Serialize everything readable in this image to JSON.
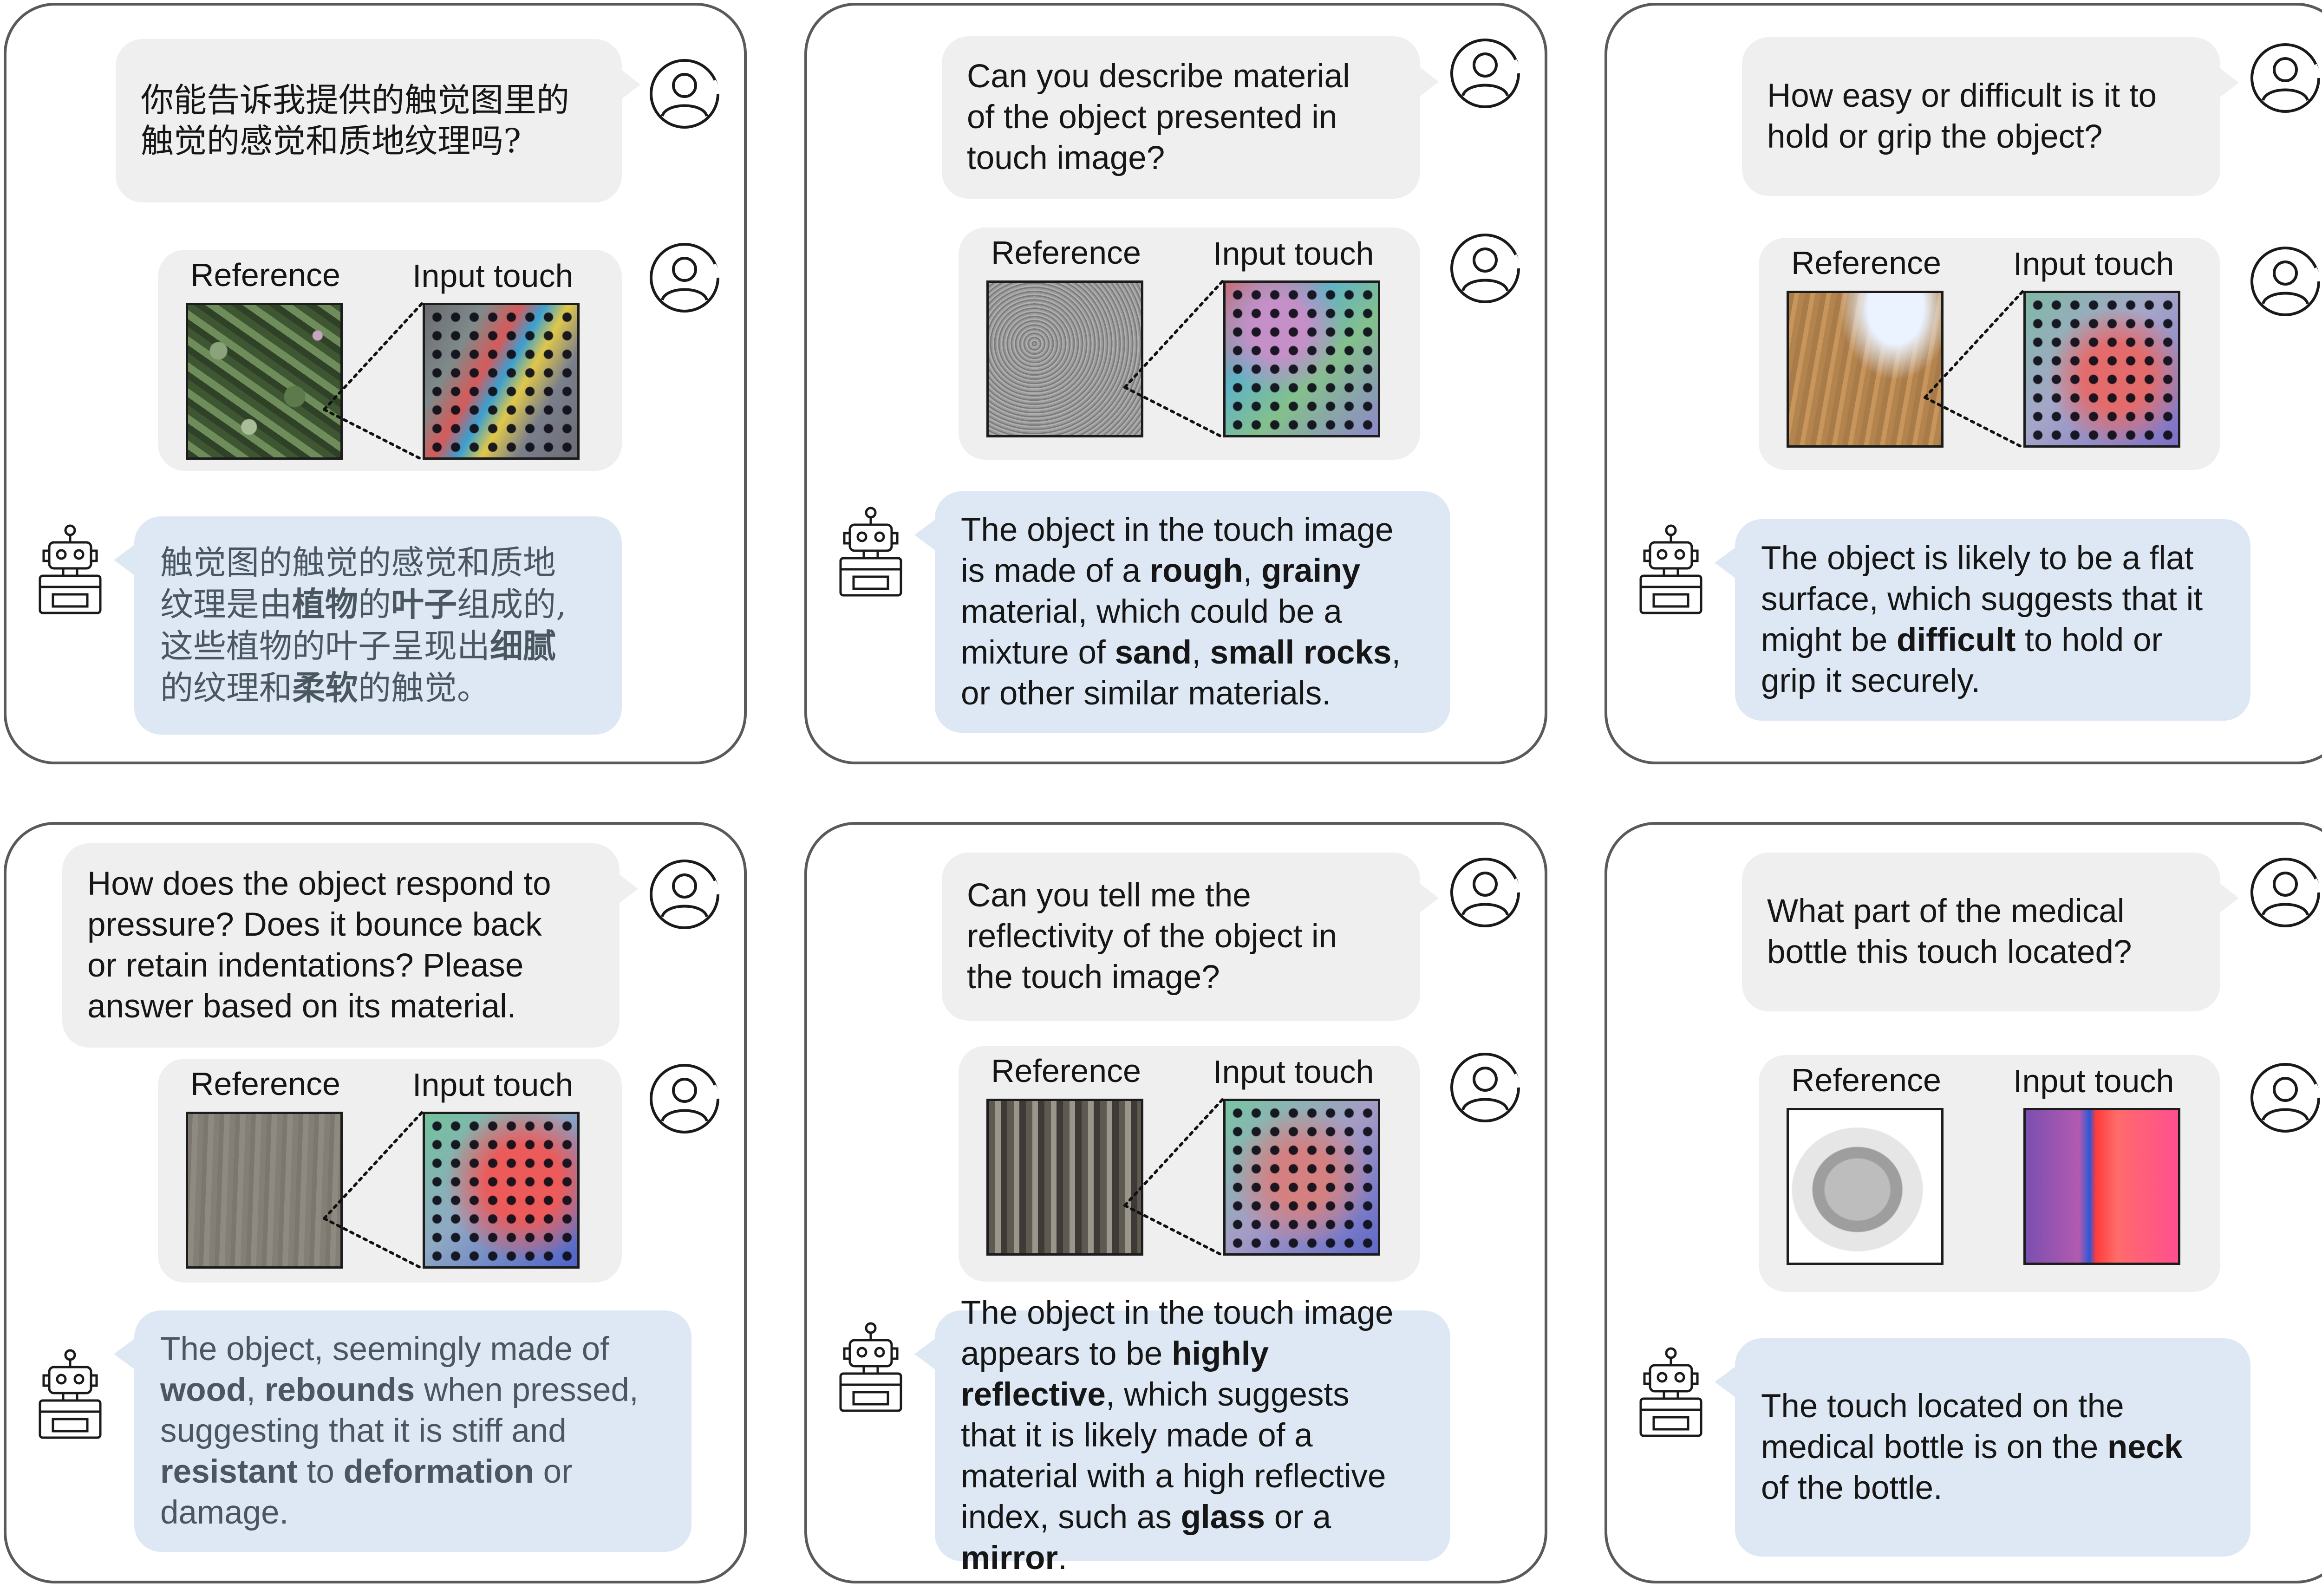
{
  "labels": {
    "reference": "Reference",
    "input_touch": "Input touch"
  },
  "icons": {
    "user": "user-avatar-icon",
    "assistant": "robot-icon"
  },
  "colors": {
    "question_bubble": "#efefef",
    "answer_bubble": "#dde8f4",
    "panel_border": "#5a5a5a"
  },
  "panels": [
    {
      "question": [
        "你能告诉我提供的触觉图里的",
        "触觉的感觉和质地纹理吗?"
      ],
      "answer": [
        [
          {
            "t": "触觉图的触觉的感觉和质地"
          }
        ],
        [
          {
            "t": "纹理是由"
          },
          {
            "t": "植物",
            "b": true
          },
          {
            "t": "的"
          },
          {
            "t": "叶子",
            "b": true
          },
          {
            "t": "组成的,"
          }
        ],
        [
          {
            "t": "这些植物的叶子呈现出"
          },
          {
            "t": "细腻",
            "b": true
          }
        ],
        [
          {
            "t": "的纹理和"
          },
          {
            "t": "柔软",
            "b": true
          },
          {
            "t": "的触觉。"
          }
        ]
      ]
    },
    {
      "question": [
        "Can you describe material",
        "of the object presented in",
        "touch image?"
      ],
      "answer": [
        [
          {
            "t": "The object in the touch image"
          }
        ],
        [
          {
            "t": "is made of a "
          },
          {
            "t": "rough",
            "b": true
          },
          {
            "t": ", "
          },
          {
            "t": "grainy",
            "b": true
          }
        ],
        [
          {
            "t": "material, which could be a"
          }
        ],
        [
          {
            "t": "mixture of "
          },
          {
            "t": "sand",
            "b": true
          },
          {
            "t": ", "
          },
          {
            "t": "small rocks",
            "b": true
          },
          {
            "t": ","
          }
        ],
        [
          {
            "t": "or other similar materials."
          }
        ]
      ]
    },
    {
      "question": [
        "How easy or difficult is it to",
        "hold or grip the object?"
      ],
      "answer": [
        [
          {
            "t": "The object is likely to be a flat"
          }
        ],
        [
          {
            "t": "surface, which suggests that it"
          }
        ],
        [
          {
            "t": "might be "
          },
          {
            "t": "difficult",
            "b": true
          },
          {
            "t": " to hold or"
          }
        ],
        [
          {
            "t": "grip it securely."
          }
        ]
      ]
    },
    {
      "question": [
        "How does the object respond to",
        "pressure? Does it bounce back",
        "or retain indentations? Please",
        "answer based on its material."
      ],
      "answer": [
        [
          {
            "t": "The object, seemingly made of"
          }
        ],
        [
          {
            "t": "wood",
            "b": true
          },
          {
            "t": ", "
          },
          {
            "t": "rebounds",
            "b": true
          },
          {
            "t": " when pressed,"
          }
        ],
        [
          {
            "t": "suggesting that it is stiff and"
          }
        ],
        [
          {
            "t": "resistant",
            "b": true
          },
          {
            "t": " to "
          },
          {
            "t": "deformation",
            "b": true
          },
          {
            "t": " or"
          }
        ],
        [
          {
            "t": "damage."
          }
        ]
      ]
    },
    {
      "question": [
        "Can you tell me the",
        "reflectivity of the object in",
        "the touch image?"
      ],
      "answer": [
        [
          {
            "t": "The object in the touch image"
          }
        ],
        [
          {
            "t": "appears to be "
          },
          {
            "t": "highly",
            "b": true
          }
        ],
        [
          {
            "t": "reflective",
            "b": true
          },
          {
            "t": ", which suggests"
          }
        ],
        [
          {
            "t": "that it is likely made of a"
          }
        ],
        [
          {
            "t": "material with a high reflective"
          }
        ],
        [
          {
            "t": "index, such as "
          },
          {
            "t": "glass",
            "b": true
          },
          {
            "t": " or a"
          }
        ],
        [
          {
            "t": "mirror",
            "b": true
          },
          {
            "t": "."
          }
        ]
      ]
    },
    {
      "question": [
        "What part of the medical",
        "bottle this touch located?"
      ],
      "answer": [
        [
          {
            "t": "The touch located on the"
          }
        ],
        [
          {
            "t": "medical bottle is on the "
          },
          {
            "t": "neck",
            "b": true
          }
        ],
        [
          {
            "t": "of the bottle."
          }
        ]
      ]
    }
  ]
}
